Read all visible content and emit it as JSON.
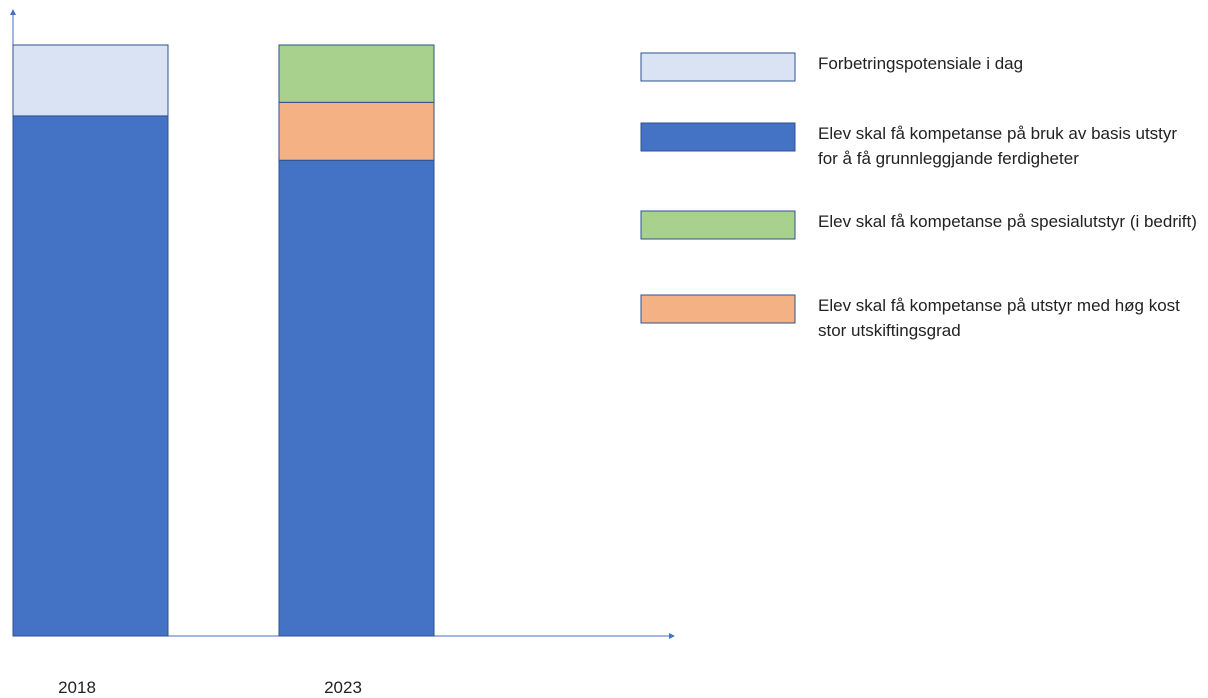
{
  "chart_data": {
    "type": "stacked_bar",
    "categories": [
      "2018",
      "2023"
    ],
    "ylim": [
      0,
      100
    ],
    "series": [
      {
        "name": "Elev skal få kompetanse på bruk av basis utstyr for å få grunnleggjande ferdigheter",
        "color": "#4472c4",
        "values": [
          88,
          80.5
        ]
      },
      {
        "name": "Elev skal få kompetanse på utstyr med høg kost stor utskiftingsgrad",
        "color": "#f4b183",
        "values": [
          null,
          9.8
        ]
      },
      {
        "name": "Elev skal få kompetanse på spesialutstyr (i bedrift)",
        "color": "#a9d18e",
        "values": [
          null,
          9.7
        ]
      },
      {
        "name": "Forbetringspotensiale i dag",
        "color": "#dae3f3",
        "values": [
          12,
          null
        ]
      }
    ]
  }
}
